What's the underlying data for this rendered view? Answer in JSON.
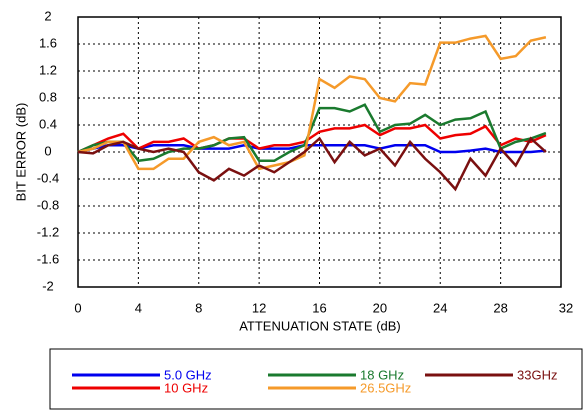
{
  "chart_data": {
    "type": "line",
    "xlabel": "ATTENUATION STATE (dB)",
    "ylabel": "BIT ERROR (dB)",
    "x": [
      0,
      1,
      2,
      3,
      4,
      5,
      6,
      7,
      8,
      9,
      10,
      11,
      12,
      13,
      14,
      15,
      16,
      17,
      18,
      19,
      20,
      21,
      22,
      23,
      24,
      25,
      26,
      27,
      28,
      29,
      30,
      31
    ],
    "xlim": [
      0,
      32
    ],
    "xticks": [
      0,
      4,
      8,
      12,
      16,
      20,
      24,
      28,
      32
    ],
    "ylim": [
      -2,
      2
    ],
    "yticks": [
      -2,
      -1.6,
      -1.2,
      -0.8,
      -0.4,
      0,
      0.4,
      0.8,
      1.2,
      1.6,
      2
    ],
    "grid": true,
    "series": [
      {
        "name": "5.0 GHz",
        "color": "#0000ee",
        "values": [
          0,
          0.05,
          0.1,
          0.1,
          0.05,
          0.1,
          0.1,
          0.1,
          0.05,
          0.05,
          0.05,
          0.1,
          0.05,
          0.05,
          0.05,
          0.1,
          0.1,
          0.1,
          0.1,
          0.1,
          0.05,
          0.1,
          0.1,
          0.1,
          0,
          0,
          0.02,
          0.05,
          0,
          0,
          0,
          0.02
        ]
      },
      {
        "name": "10 GHz",
        "color": "#ee0000",
        "values": [
          0,
          0.1,
          0.2,
          0.27,
          0.05,
          0.15,
          0.15,
          0.2,
          0.05,
          0.1,
          0.2,
          0.2,
          0.05,
          0.1,
          0.1,
          0.15,
          0.3,
          0.35,
          0.35,
          0.4,
          0.25,
          0.35,
          0.35,
          0.4,
          0.2,
          0.25,
          0.27,
          0.38,
          0.1,
          0.2,
          0.15,
          0.25
        ]
      },
      {
        "name": "18 GHz",
        "color": "#1a7a2e",
        "values": [
          0,
          0.1,
          0.15,
          0.15,
          -0.13,
          -0.1,
          0,
          0.05,
          0.05,
          0.1,
          0.2,
          0.22,
          -0.13,
          -0.13,
          0,
          0.1,
          0.65,
          0.65,
          0.6,
          0.7,
          0.3,
          0.4,
          0.42,
          0.55,
          0.4,
          0.48,
          0.5,
          0.6,
          0.05,
          0.15,
          0.2,
          0.28
        ]
      },
      {
        "name": "26.5GHz",
        "color": "#f59a2a",
        "values": [
          0,
          0.05,
          0.15,
          0.15,
          -0.25,
          -0.25,
          -0.1,
          -0.1,
          0.15,
          0.22,
          0.1,
          0.15,
          -0.25,
          -0.2,
          -0.15,
          -0.05,
          1.08,
          0.95,
          1.12,
          1.08,
          0.8,
          0.75,
          1.02,
          1.0,
          1.62,
          1.62,
          1.68,
          1.72,
          1.38,
          1.42,
          1.65,
          1.7
        ]
      },
      {
        "name": "33GHz",
        "color": "#7a1010",
        "values": [
          0,
          -0.02,
          0.1,
          0.15,
          0.05,
          0,
          0.05,
          0,
          -0.3,
          -0.42,
          -0.25,
          -0.35,
          -0.2,
          -0.3,
          -0.15,
          0,
          0.2,
          -0.15,
          0.15,
          -0.05,
          0.05,
          -0.2,
          0.15,
          -0.1,
          -0.3,
          -0.55,
          -0.1,
          -0.35,
          0.05,
          -0.2,
          0.2,
          0
        ]
      }
    ]
  }
}
